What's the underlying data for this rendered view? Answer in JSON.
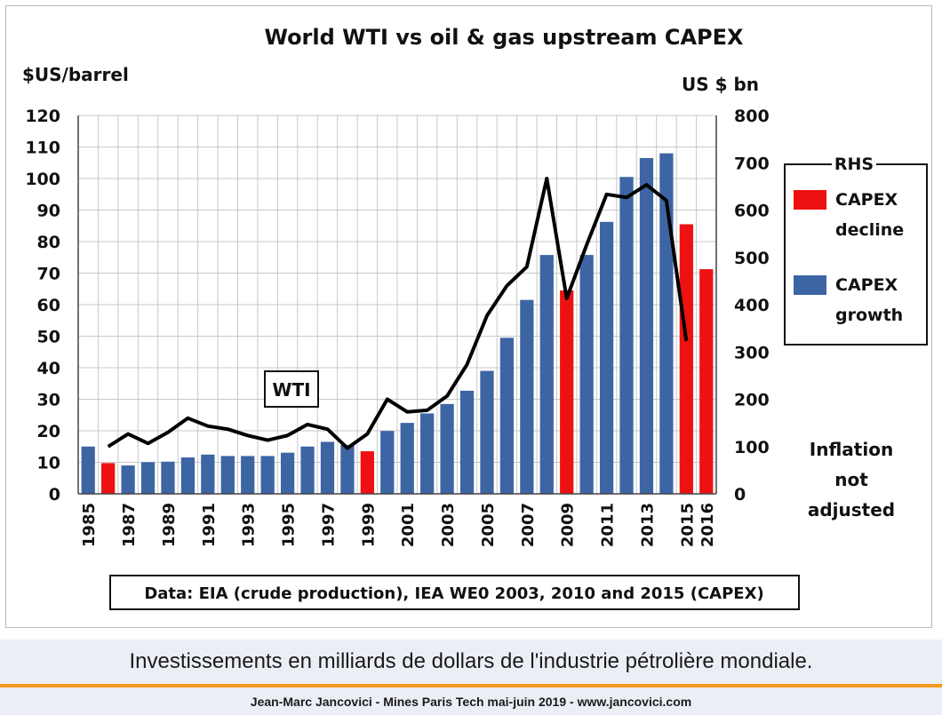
{
  "chart_data": {
    "type": "bar",
    "title": "World WTI vs oil & gas upstream CAPEX",
    "left_axis_label": "$US/barrel",
    "right_axis_label": "US $ bn",
    "left_ylim": [
      0,
      120
    ],
    "left_ticks": [
      0,
      10,
      20,
      30,
      40,
      50,
      60,
      70,
      80,
      90,
      100,
      110,
      120
    ],
    "right_ylim": [
      0,
      800
    ],
    "right_ticks": [
      0,
      100,
      200,
      300,
      400,
      500,
      600,
      700,
      800
    ],
    "years": [
      1985,
      1986,
      1987,
      1988,
      1989,
      1990,
      1991,
      1992,
      1993,
      1994,
      1995,
      1996,
      1997,
      1998,
      1999,
      2000,
      2001,
      2002,
      2003,
      2004,
      2005,
      2006,
      2007,
      2008,
      2009,
      2010,
      2011,
      2012,
      2013,
      2014,
      2015,
      2016
    ],
    "x_tick_labels": [
      "1985",
      "1987",
      "1989",
      "1991",
      "1993",
      "1995",
      "1997",
      "1999",
      "2001",
      "2003",
      "2005",
      "2007",
      "2009",
      "2011",
      "2013",
      "2015",
      "2016"
    ],
    "grid": true,
    "series": [
      {
        "name": "CAPEX",
        "axis": "right",
        "kind": "bar",
        "values": [
          100,
          65,
          60,
          67,
          68,
          77,
          83,
          80,
          80,
          80,
          87,
          100,
          110,
          103,
          90,
          133,
          150,
          170,
          190,
          218,
          260,
          330,
          410,
          505,
          430,
          505,
          575,
          670,
          710,
          720,
          570,
          475
        ],
        "status": [
          "growth",
          "decline",
          "growth",
          "growth",
          "growth",
          "growth",
          "growth",
          "growth",
          "growth",
          "growth",
          "growth",
          "growth",
          "growth",
          "growth",
          "decline",
          "growth",
          "growth",
          "growth",
          "growth",
          "growth",
          "growth",
          "growth",
          "growth",
          "growth",
          "decline",
          "growth",
          "growth",
          "growth",
          "growth",
          "growth",
          "decline",
          "decline"
        ]
      },
      {
        "name": "WTI",
        "axis": "left",
        "kind": "line",
        "x": [
          1986,
          1987,
          1988,
          1989,
          1990,
          1991,
          1992,
          1993,
          1994,
          1995,
          1996,
          1997,
          1998,
          1999,
          2000,
          2001,
          2002,
          2003,
          2004,
          2005,
          2006,
          2007,
          2008,
          2009,
          2010,
          2011,
          2012,
          2013,
          2014,
          2015
        ],
        "values": [
          15,
          19,
          16,
          19.5,
          24,
          21.5,
          20.5,
          18.5,
          17,
          18.5,
          22,
          20.5,
          14.5,
          19,
          30,
          26,
          26.5,
          31,
          41,
          56.5,
          66,
          72,
          100,
          62,
          79,
          95,
          94,
          98,
          93,
          48.5
        ]
      }
    ],
    "annotations": {
      "wti_label": "WTI",
      "inflation": [
        "Inflation",
        "not",
        "adjusted"
      ],
      "source": "Data: EIA (crude production), IEA WE0 2003,  2010 and 2015 (CAPEX)"
    },
    "legend": {
      "title": "RHS",
      "placement": "right",
      "items": [
        {
          "label_lines": [
            "CAPEX",
            "decline"
          ],
          "color": "#ee1111"
        },
        {
          "label_lines": [
            "CAPEX",
            "growth"
          ],
          "color": "#3d65a4"
        }
      ]
    },
    "colors": {
      "growth": "#3d65a4",
      "decline": "#ee1111",
      "line": "#000000",
      "grid": "#c8c8c8"
    }
  },
  "caption": "Investissements en milliards de dollars de l'industrie pétrolière mondiale.",
  "footer": "Jean-Marc Jancovici - Mines Paris Tech mai-juin 2019 - www.jancovici.com"
}
